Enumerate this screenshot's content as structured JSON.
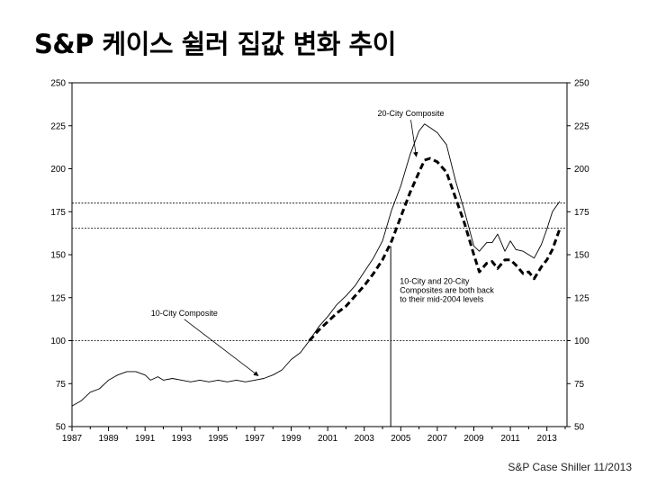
{
  "slide": {
    "title": "S&P 케이스 쉴러 집값 변화 추이",
    "source": "S&P Case Shiller 11/2013"
  },
  "chart_data": {
    "type": "line",
    "title": "",
    "xlabel": "",
    "ylabel": "",
    "xlim": [
      1987,
      2014.1
    ],
    "ylim": [
      50,
      250
    ],
    "x_ticks": [
      "1987",
      "1989",
      "1991",
      "1993",
      "1995",
      "1997",
      "1999",
      "2001",
      "2003",
      "2005",
      "2007",
      "2009",
      "2011",
      "2013"
    ],
    "y_ticks": [
      "50",
      "75",
      "100",
      "125",
      "150",
      "175",
      "200",
      "225",
      "250"
    ],
    "grid": false,
    "reference_lines": [
      100,
      165.5,
      180
    ],
    "vertical_marker_x": 2004.45,
    "series": [
      {
        "name": "10-City Composite",
        "style": "solid",
        "x": [
          1987,
          1987.5,
          1988,
          1988.5,
          1989,
          1989.5,
          1990,
          1990.5,
          1991,
          1991.3,
          1991.7,
          1992,
          1992.5,
          1993,
          1993.5,
          1994,
          1994.5,
          1995,
          1995.5,
          1996,
          1996.5,
          1997,
          1997.5,
          1998,
          1998.5,
          1999,
          1999.5,
          2000,
          2000.5,
          2001,
          2001.5,
          2002,
          2002.5,
          2003,
          2003.5,
          2004,
          2004.5,
          2005,
          2005.5,
          2006,
          2006.3,
          2006.6,
          2007,
          2007.5,
          2008,
          2008.5,
          2009,
          2009.3,
          2009.7,
          2010,
          2010.3,
          2010.7,
          2011,
          2011.3,
          2011.7,
          2012,
          2012.3,
          2012.7,
          2013,
          2013.3,
          2013.7
        ],
        "values": [
          62,
          65,
          70,
          72,
          77,
          80,
          82,
          82,
          80,
          77,
          79,
          77,
          78,
          77,
          76,
          77,
          76,
          77,
          76,
          77,
          76,
          77,
          78,
          80,
          83,
          89,
          93,
          100,
          108,
          114,
          121,
          126,
          132,
          140,
          148,
          158,
          176,
          190,
          208,
          222,
          226,
          224,
          221,
          214,
          193,
          175,
          155,
          152,
          157,
          157,
          162,
          152,
          158,
          153,
          152,
          150,
          148,
          156,
          165,
          175,
          181
        ]
      },
      {
        "name": "20-City Composite",
        "style": "dashed",
        "x": [
          2000,
          2000.5,
          2001,
          2001.5,
          2002,
          2002.5,
          2003,
          2003.5,
          2004,
          2004.5,
          2005,
          2005.5,
          2006,
          2006.3,
          2006.6,
          2007,
          2007.5,
          2008,
          2008.5,
          2009,
          2009.3,
          2009.7,
          2010,
          2010.3,
          2010.7,
          2011,
          2011.3,
          2011.7,
          2012,
          2012.3,
          2012.7,
          2013,
          2013.3,
          2013.7
        ],
        "values": [
          100,
          106,
          111,
          116,
          120,
          126,
          132,
          139,
          147,
          158,
          172,
          186,
          198,
          205,
          206,
          204,
          198,
          183,
          168,
          150,
          140,
          145,
          146,
          142,
          147,
          147,
          144,
          139,
          140,
          136,
          143,
          147,
          153,
          165
        ]
      }
    ],
    "annotations": [
      {
        "text": "20-City Composite",
        "x": 2005.55,
        "y": 230.5,
        "arrow_to": [
          2005.85,
          206
        ]
      },
      {
        "text": "10-City Composite",
        "x": 1993.15,
        "y": 114.5,
        "arrow_to": [
          1997.2,
          78.5
        ]
      },
      {
        "text_lines": [
          "10-City and 20-City",
          "Composites are both back",
          "to their mid-2004 levels"
        ],
        "x": 2004.95,
        "y": 133
      }
    ]
  }
}
